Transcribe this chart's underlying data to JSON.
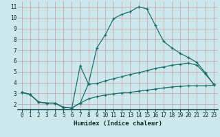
{
  "xlabel": "Humidex (Indice chaleur)",
  "ylabel": "",
  "bg_color": "#cce8ec",
  "line_color": "#1a6e6a",
  "grid_color": "#b8d8dc",
  "xlim": [
    -0.5,
    23.5
  ],
  "ylim": [
    1.5,
    11.5
  ],
  "xticks": [
    0,
    1,
    2,
    3,
    4,
    5,
    6,
    7,
    8,
    9,
    10,
    11,
    12,
    13,
    14,
    15,
    16,
    17,
    18,
    19,
    20,
    21,
    22,
    23
  ],
  "yticks": [
    2,
    3,
    4,
    5,
    6,
    7,
    8,
    9,
    10,
    11
  ],
  "series": [
    {
      "x": [
        0,
        1,
        2,
        3,
        4,
        5,
        6,
        7,
        8,
        9,
        10,
        11,
        12,
        13,
        14,
        15,
        16,
        17,
        18,
        19,
        20,
        21,
        22,
        23
      ],
      "y": [
        3.1,
        2.9,
        2.2,
        2.1,
        2.1,
        1.7,
        1.65,
        2.1,
        3.9,
        7.2,
        8.4,
        9.9,
        10.3,
        10.55,
        11.0,
        10.8,
        9.3,
        7.8,
        7.2,
        6.7,
        6.3,
        5.85,
        4.9,
        3.85
      ]
    },
    {
      "x": [
        0,
        1,
        2,
        3,
        4,
        5,
        6,
        7,
        8,
        9,
        10,
        11,
        12,
        13,
        14,
        15,
        16,
        17,
        18,
        19,
        20,
        21,
        22,
        23
      ],
      "y": [
        3.1,
        2.9,
        2.2,
        2.1,
        2.1,
        1.7,
        1.65,
        5.55,
        3.85,
        3.9,
        4.15,
        4.35,
        4.55,
        4.75,
        4.9,
        5.1,
        5.3,
        5.45,
        5.6,
        5.7,
        5.8,
        5.6,
        4.8,
        3.85
      ]
    },
    {
      "x": [
        0,
        1,
        2,
        3,
        4,
        5,
        6,
        7,
        8,
        9,
        10,
        11,
        12,
        13,
        14,
        15,
        16,
        17,
        18,
        19,
        20,
        21,
        22,
        23
      ],
      "y": [
        3.1,
        2.9,
        2.2,
        2.1,
        2.1,
        1.7,
        1.65,
        2.1,
        2.5,
        2.7,
        2.85,
        2.95,
        3.05,
        3.1,
        3.2,
        3.3,
        3.4,
        3.5,
        3.6,
        3.65,
        3.7,
        3.7,
        3.7,
        3.75
      ]
    }
  ]
}
